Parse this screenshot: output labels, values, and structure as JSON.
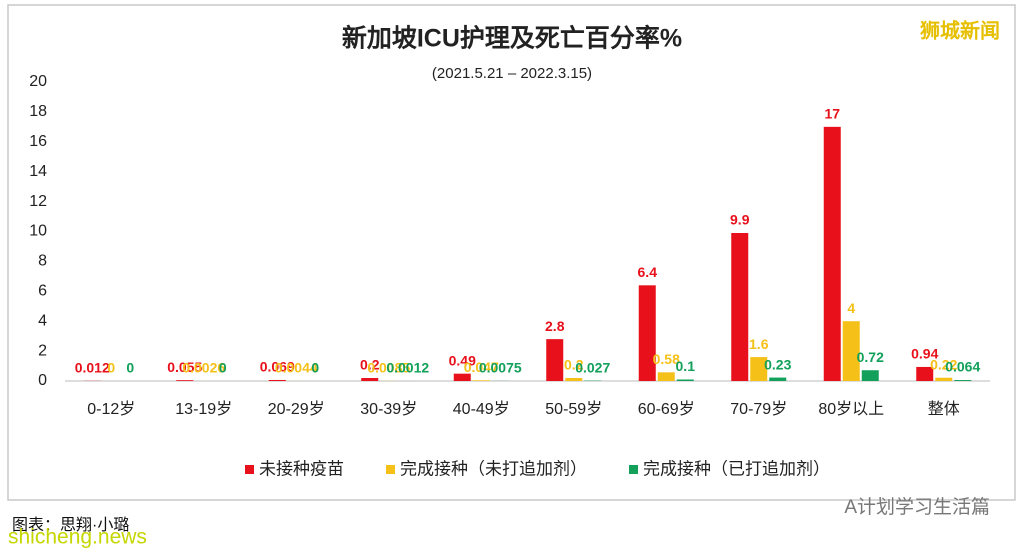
{
  "chart_data": {
    "type": "bar",
    "title": "新加坡ICU护理及死亡百分率%",
    "subtitle": "(2021.5.21 – 2022.3.15)",
    "categories": [
      "0-12岁",
      "13-19岁",
      "20-29岁",
      "30-39岁",
      "40-49岁",
      "50-59岁",
      "60-69岁",
      "70-79岁",
      "80岁以上",
      "整体"
    ],
    "series": [
      {
        "name": "未接种疫苗",
        "color": "#e8101a",
        "values": [
          0.012,
          0.055,
          0.069,
          0.2,
          0.49,
          2.8,
          6.4,
          9.9,
          17,
          0.94
        ]
      },
      {
        "name": "完成接种（未打追加剂）",
        "color": "#f5c018",
        "values": [
          0,
          0.0026,
          0.0044,
          0.0085,
          0.047,
          0.2,
          0.58,
          1.6,
          4,
          0.22
        ]
      },
      {
        "name": "完成接种（已打追加剂）",
        "color": "#12a05a",
        "values": [
          0,
          0,
          0,
          0.0012,
          0.0075,
          0.027,
          0.1,
          0.23,
          0.72,
          0.064
        ]
      }
    ],
    "ylim": [
      0,
      20
    ],
    "yticks": [
      0,
      2,
      4,
      6,
      8,
      10,
      12,
      14,
      16,
      18,
      20
    ],
    "grid": false,
    "legend": "bottom"
  },
  "source": "图表：思翔·小璐",
  "watermarks": [
    "狮城新闻",
    "A计划学习生活篇",
    "shicheng.news"
  ]
}
